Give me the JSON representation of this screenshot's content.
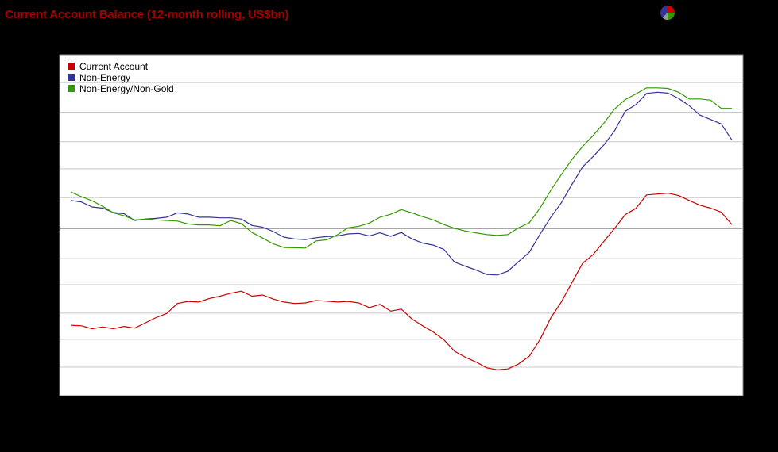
{
  "title": "Current Account Balance (12-month rolling, US$bn)",
  "icons": {
    "chart_type_switch": "pie-chart-icon"
  },
  "colors": {
    "current_account": "#cc0000",
    "non_energy": "#333399",
    "non_energy_non_gold": "#339900"
  },
  "chart_data": {
    "type": "line",
    "title": "Current Account Balance (12-month rolling, US$bn)",
    "xlabel": "",
    "ylabel": "",
    "ylim": [
      -58,
      58
    ],
    "grid": true,
    "legend": "top-left",
    "series": [
      {
        "name": "Current Account",
        "color": "#cc0000",
        "values": [
          -33.0,
          -33.2,
          -34.2,
          -33.6,
          -34.2,
          -33.4,
          -34.0,
          -32.2,
          -30.4,
          -29.0,
          -25.6,
          -24.9,
          -25.1,
          -23.9,
          -23.1,
          -22.1,
          -21.4,
          -23.1,
          -22.7,
          -24.1,
          -25.1,
          -25.6,
          -25.4,
          -24.6,
          -24.8,
          -25.1,
          -24.9,
          -25.4,
          -27.0,
          -25.9,
          -28.2,
          -27.5,
          -30.9,
          -33.2,
          -35.3,
          -38.0,
          -41.9,
          -43.9,
          -45.5,
          -47.5,
          -48.2,
          -47.9,
          -46.2,
          -43.6,
          -37.9,
          -30.6,
          -25.1,
          -18.5,
          -11.9,
          -8.9,
          -4.4,
          0,
          4.7,
          6.8,
          11.4,
          11.7,
          12.0,
          11.2,
          9.5,
          7.9,
          6.9,
          5.5,
          1.3
        ]
      },
      {
        "name": "Non-Energy",
        "color": "#333399",
        "values": [
          9.5,
          9.0,
          7.3,
          6.9,
          5.4,
          5.0,
          2.7,
          3.2,
          3.4,
          3.8,
          5.3,
          4.9,
          3.8,
          3.8,
          3.6,
          3.6,
          3.2,
          1.0,
          0.4,
          -1.1,
          -3.0,
          -3.6,
          -3.8,
          -3.2,
          -2.8,
          -2.6,
          -1.9,
          -1.7,
          -2.6,
          -1.5,
          -2.7,
          -1.4,
          -3.6,
          -5.0,
          -5.7,
          -7.2,
          -11.5,
          -12.9,
          -14.2,
          -15.7,
          -15.9,
          -14.6,
          -11.3,
          -8.2,
          -2.0,
          3.7,
          8.7,
          15.0,
          20.9,
          24.5,
          28.5,
          33.3,
          39.9,
          42.2,
          46.0,
          46.4,
          46.1,
          44.3,
          41.8,
          38.6,
          37.1,
          35.6,
          30.1
        ]
      },
      {
        "name": "Non-Energy/Non-Gold",
        "color": "#339900",
        "values": [
          12.4,
          10.8,
          9.4,
          7.5,
          5.3,
          4.3,
          2.9,
          3.1,
          2.9,
          2.7,
          2.5,
          1.5,
          1.2,
          1.2,
          0.9,
          2.7,
          1.6,
          -1.4,
          -3.3,
          -5.3,
          -6.5,
          -6.6,
          -6.7,
          -4.3,
          -3.9,
          -2.2,
          0.2,
          0.7,
          1.8,
          3.8,
          4.8,
          6.4,
          5.3,
          4.0,
          2.9,
          1.3,
          0.0,
          -0.9,
          -1.5,
          -2.1,
          -2.4,
          -2.1,
          0.2,
          1.9,
          6.9,
          12.9,
          18.3,
          23.5,
          27.9,
          31.7,
          35.9,
          40.7,
          43.9,
          45.8,
          47.9,
          47.9,
          47.7,
          46.4,
          44.1,
          44.1,
          43.7,
          40.9,
          40.9
        ]
      }
    ]
  }
}
